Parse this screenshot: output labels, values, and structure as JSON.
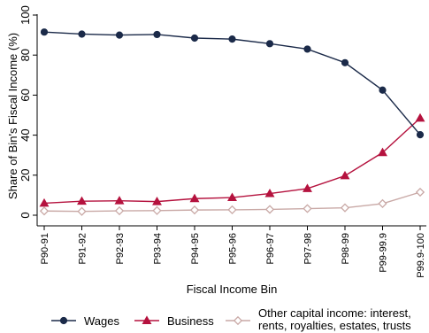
{
  "chart_data": {
    "type": "line",
    "title": "",
    "xlabel": "Fiscal Income Bin",
    "ylabel": "Share of Bin's Fiscal Income (%)",
    "ylim": [
      0,
      100
    ],
    "yticks": [
      0,
      20,
      40,
      60,
      80,
      100
    ],
    "grid": false,
    "legend_position": "bottom",
    "categories": [
      "P90-91",
      "P91-92",
      "P92-93",
      "P93-94",
      "P94-95",
      "P95-96",
      "P96-97",
      "P97-98",
      "P98-99",
      "P99-99.9",
      "P99.9-100"
    ],
    "series": [
      {
        "name": "Wages",
        "marker": "circle",
        "color": "#1b2a49",
        "values": [
          91.5,
          90.5,
          90.0,
          90.3,
          88.5,
          88.0,
          85.7,
          83.0,
          76.2,
          62.5,
          40.2
        ]
      },
      {
        "name": "Business",
        "marker": "triangle",
        "color": "#b5123e",
        "values": [
          6.0,
          7.0,
          7.2,
          6.8,
          8.3,
          8.8,
          10.8,
          13.3,
          19.7,
          31.3,
          48.5
        ]
      },
      {
        "name_lines": [
          "Other capital income: interest,",
          "rents, royalties, estates, trusts"
        ],
        "name": "Other capital income: interest, rents, royalties, estates, trusts",
        "marker": "diamond-hollow",
        "color": "#c9a9a6",
        "values": [
          2.1,
          1.9,
          2.2,
          2.3,
          2.6,
          2.7,
          2.9,
          3.3,
          3.7,
          5.8,
          11.5
        ]
      }
    ]
  }
}
